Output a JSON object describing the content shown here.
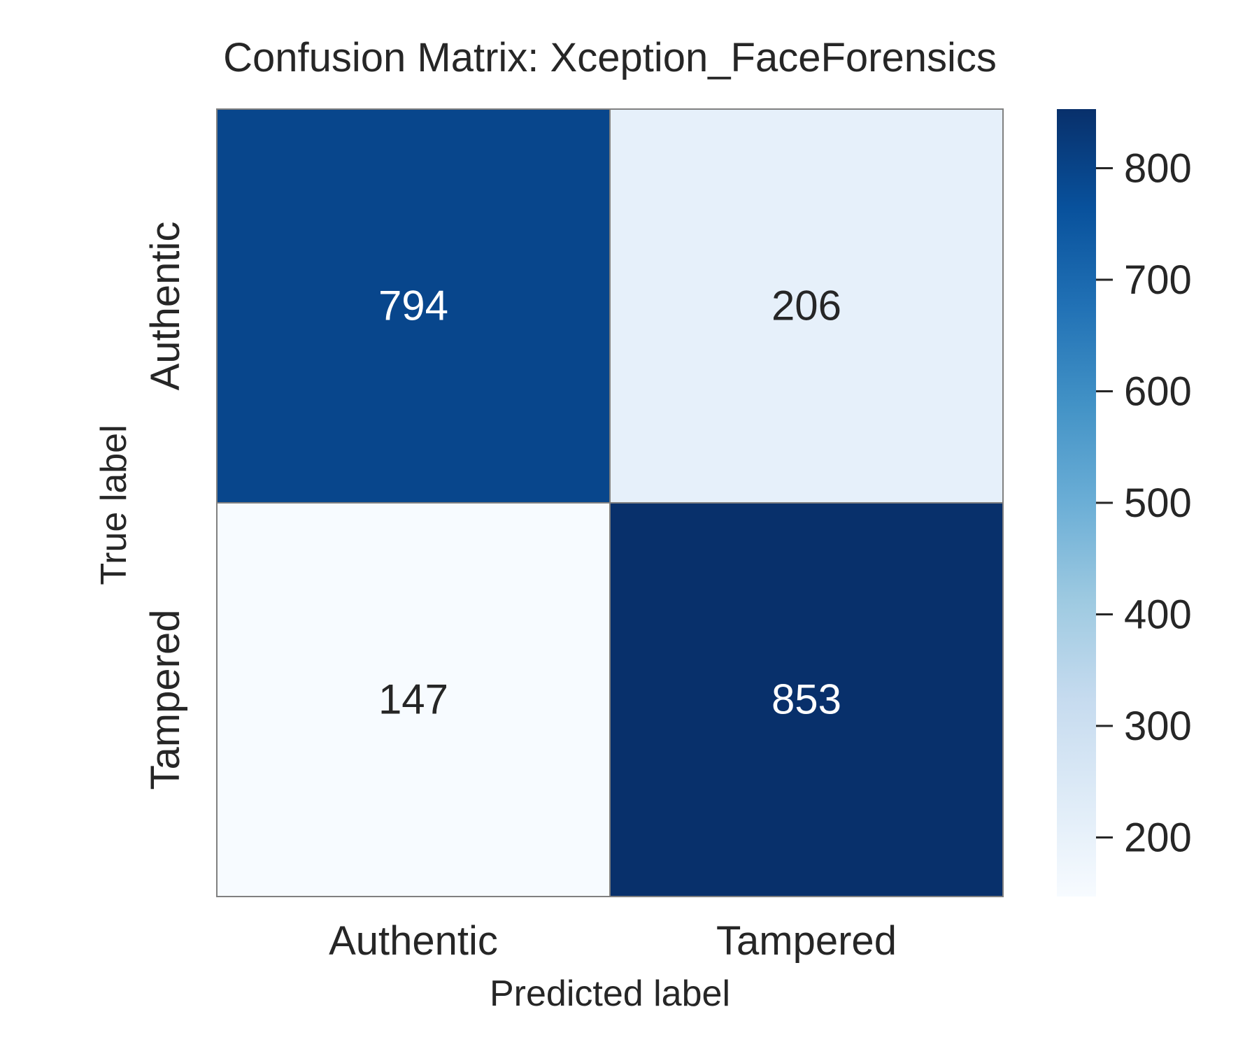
{
  "chart_data": {
    "type": "heatmap",
    "title": "Confusion Matrix: Xception_FaceForensics",
    "xlabel": "Predicted label",
    "ylabel": "True label",
    "x_categories": [
      "Authentic",
      "Tampered"
    ],
    "y_categories": [
      "Authentic",
      "Tampered"
    ],
    "values": [
      [
        794,
        206
      ],
      [
        147,
        853
      ]
    ],
    "colormap": "Blues",
    "colorbar": {
      "range": [
        147,
        853
      ],
      "ticks": [
        200,
        300,
        400,
        500,
        600,
        700,
        800
      ],
      "tick_labels": [
        "200",
        "300",
        "400",
        "500",
        "600",
        "700",
        "800"
      ]
    },
    "grid": false,
    "legend": "colorbar-right"
  },
  "colors": {
    "cell_border": "#808080",
    "text_dark": "#262626",
    "text_light": "#ffffff",
    "colormap_stops": [
      "#f7fbff",
      "#deebf7",
      "#c6dbef",
      "#9ecae1",
      "#6baed6",
      "#4292c6",
      "#2171b5",
      "#08519c",
      "#08306b"
    ]
  }
}
